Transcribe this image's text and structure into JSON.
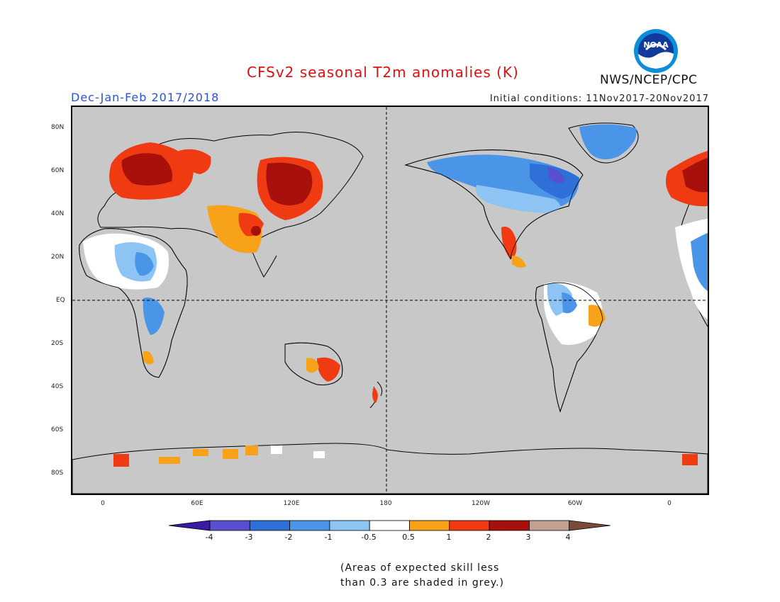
{
  "title": "CFSv2 seasonal T2m anomalies (K)",
  "season": "Dec-Jan-Feb 2017/2018",
  "initial_conditions": "Initial conditions: 11Nov2017-20Nov2017",
  "agency": "NWS/NCEP/CPC",
  "logo_text": "NOAA",
  "map": {
    "lat_labels": [
      "80N",
      "60N",
      "40N",
      "20N",
      "EQ",
      "20S",
      "40S",
      "60S",
      "80S"
    ],
    "lon_labels": [
      "0",
      "60E",
      "120E",
      "180",
      "120W",
      "60W",
      "0"
    ],
    "background_color": "#c8c8c8",
    "reference_lines": [
      "Equator (dashed)",
      "180 meridian (dashed)"
    ]
  },
  "legend": {
    "tick_labels": [
      "-4",
      "-3",
      "-2",
      "-1",
      "-0.5",
      "0.5",
      "1",
      "2",
      "3",
      "4"
    ],
    "colors": [
      "#3a1aa0",
      "#5a4fd0",
      "#2f6fd8",
      "#4a95e8",
      "#8ec4f4",
      "#ffffff",
      "#f7a218",
      "#f03a12",
      "#a8100c",
      "#c4a092",
      "#7a4a3a"
    ]
  },
  "note_lines": [
    "(Areas of expected skill less",
    "than 0.3 are shaded in grey.)"
  ]
}
